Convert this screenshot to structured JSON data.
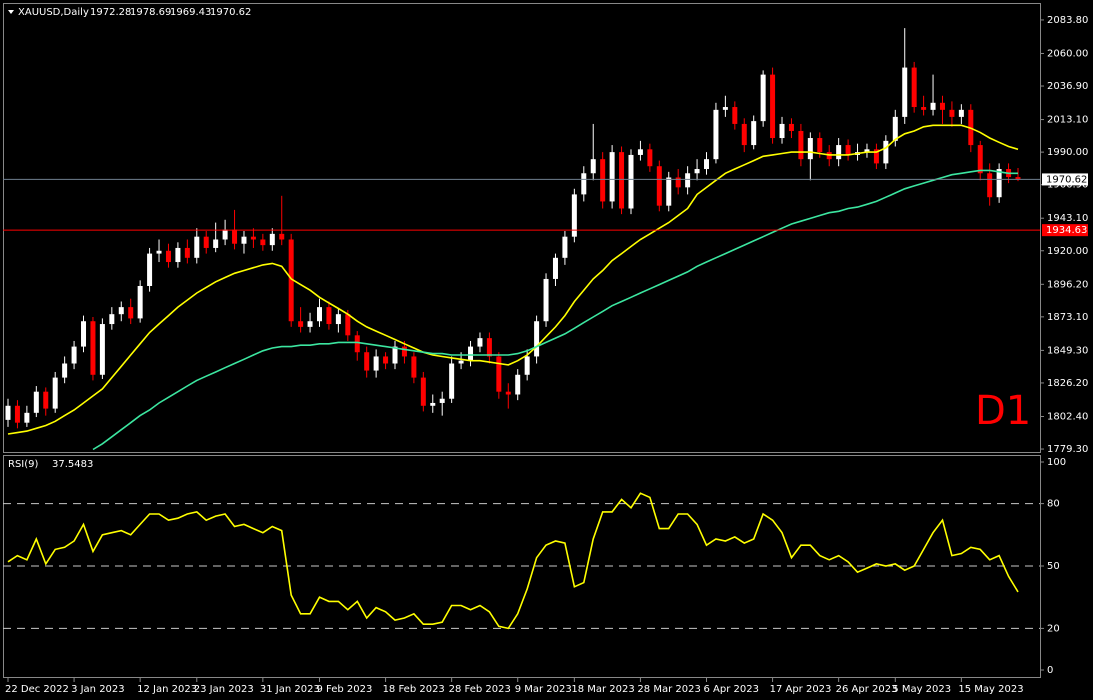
{
  "chart_data": {
    "type": "candlestick",
    "title": "XAUUSD,Daily",
    "timeframe_label": "D1",
    "bull_color": "#ffffff",
    "bear_color": "#ff0000",
    "categories": [
      "22 Dec 2022",
      null,
      null,
      null,
      null,
      null,
      null,
      "3 Jan 2023",
      null,
      null,
      null,
      null,
      null,
      null,
      "12 Jan 2023",
      null,
      null,
      null,
      null,
      null,
      "23 Jan 2023",
      null,
      null,
      null,
      null,
      null,
      null,
      "31 Jan 2023",
      null,
      null,
      null,
      null,
      null,
      "9 Feb 2023",
      null,
      null,
      null,
      null,
      null,
      null,
      "18 Feb 2023",
      null,
      null,
      null,
      null,
      null,
      null,
      "28 Feb 2023",
      null,
      null,
      null,
      null,
      null,
      null,
      "9 Mar 2023",
      null,
      null,
      null,
      null,
      null,
      "18 Mar 2023",
      null,
      null,
      null,
      null,
      null,
      null,
      "28 Mar 2023",
      null,
      null,
      null,
      null,
      null,
      null,
      "6 Apr 2023",
      null,
      null,
      null,
      null,
      null,
      null,
      "17 Apr 2023",
      null,
      null,
      null,
      null,
      null,
      null,
      "26 Apr 2023",
      null,
      null,
      null,
      null,
      null,
      "5 May 2023",
      null,
      null,
      null,
      null,
      null,
      null,
      "15 May 2023",
      null,
      null,
      null,
      null,
      null,
      null
    ],
    "ohlc": [
      [
        1800,
        1815,
        1795,
        1810
      ],
      [
        1810,
        1814,
        1794,
        1798
      ],
      [
        1798,
        1810,
        1795,
        1805
      ],
      [
        1805,
        1824,
        1802,
        1820
      ],
      [
        1820,
        1823,
        1803,
        1808
      ],
      [
        1808,
        1834,
        1805,
        1830
      ],
      [
        1830,
        1845,
        1826,
        1840
      ],
      [
        1840,
        1856,
        1836,
        1852
      ],
      [
        1852,
        1874,
        1848,
        1870
      ],
      [
        1870,
        1873,
        1828,
        1832
      ],
      [
        1832,
        1872,
        1829,
        1868
      ],
      [
        1868,
        1880,
        1864,
        1875
      ],
      [
        1875,
        1884,
        1870,
        1880
      ],
      [
        1880,
        1886,
        1868,
        1872
      ],
      [
        1872,
        1899,
        1869,
        1895
      ],
      [
        1895,
        1922,
        1891,
        1918
      ],
      [
        1918,
        1928,
        1912,
        1920
      ],
      [
        1920,
        1925,
        1908,
        1912
      ],
      [
        1912,
        1926,
        1908,
        1922
      ],
      [
        1922,
        1928,
        1911,
        1915
      ],
      [
        1915,
        1936,
        1911,
        1930
      ],
      [
        1930,
        1934,
        1918,
        1922
      ],
      [
        1922,
        1940,
        1919,
        1928
      ],
      [
        1928,
        1942,
        1924,
        1935
      ],
      [
        1935,
        1949,
        1921,
        1925
      ],
      [
        1925,
        1934,
        1918,
        1930
      ],
      [
        1930,
        1936,
        1922,
        1928
      ],
      [
        1928,
        1932,
        1920,
        1924
      ],
      [
        1924,
        1936,
        1920,
        1932
      ],
      [
        1932,
        1959,
        1924,
        1928
      ],
      [
        1928,
        1932,
        1866,
        1870
      ],
      [
        1870,
        1880,
        1862,
        1866
      ],
      [
        1866,
        1876,
        1862,
        1870
      ],
      [
        1870,
        1886,
        1866,
        1880
      ],
      [
        1880,
        1884,
        1864,
        1868
      ],
      [
        1868,
        1879,
        1862,
        1875
      ],
      [
        1875,
        1878,
        1856,
        1860
      ],
      [
        1860,
        1863,
        1842,
        1848
      ],
      [
        1848,
        1852,
        1830,
        1835
      ],
      [
        1835,
        1850,
        1830,
        1845
      ],
      [
        1845,
        1848,
        1836,
        1840
      ],
      [
        1840,
        1856,
        1836,
        1852
      ],
      [
        1852,
        1856,
        1840,
        1845
      ],
      [
        1845,
        1848,
        1826,
        1830
      ],
      [
        1830,
        1834,
        1806,
        1810
      ],
      [
        1810,
        1818,
        1805,
        1812
      ],
      [
        1812,
        1820,
        1803,
        1815
      ],
      [
        1815,
        1845,
        1812,
        1840
      ],
      [
        1840,
        1848,
        1836,
        1842
      ],
      [
        1842,
        1856,
        1838,
        1852
      ],
      [
        1852,
        1862,
        1848,
        1858
      ],
      [
        1858,
        1862,
        1840,
        1845
      ],
      [
        1845,
        1848,
        1815,
        1820
      ],
      [
        1820,
        1826,
        1808,
        1818
      ],
      [
        1818,
        1836,
        1814,
        1832
      ],
      [
        1832,
        1850,
        1828,
        1845
      ],
      [
        1845,
        1874,
        1840,
        1870
      ],
      [
        1870,
        1904,
        1866,
        1900
      ],
      [
        1900,
        1918,
        1895,
        1915
      ],
      [
        1915,
        1934,
        1910,
        1930
      ],
      [
        1930,
        1964,
        1926,
        1960
      ],
      [
        1960,
        1980,
        1955,
        1975
      ],
      [
        1975,
        2010,
        1970,
        1985
      ],
      [
        1985,
        1990,
        1950,
        1955
      ],
      [
        1955,
        1995,
        1950,
        1990
      ],
      [
        1990,
        1994,
        1946,
        1950
      ],
      [
        1950,
        1992,
        1946,
        1988
      ],
      [
        1988,
        1998,
        1984,
        1992
      ],
      [
        1992,
        1996,
        1976,
        1980
      ],
      [
        1980,
        1984,
        1948,
        1952
      ],
      [
        1952,
        1976,
        1948,
        1972
      ],
      [
        1972,
        1978,
        1960,
        1965
      ],
      [
        1965,
        1980,
        1960,
        1975
      ],
      [
        1975,
        1985,
        1970,
        1978
      ],
      [
        1978,
        1990,
        1974,
        1985
      ],
      [
        1985,
        2025,
        1982,
        2020
      ],
      [
        2020,
        2030,
        2015,
        2022
      ],
      [
        2022,
        2026,
        2006,
        2010
      ],
      [
        2010,
        2014,
        1990,
        1995
      ],
      [
        1995,
        2016,
        1992,
        2012
      ],
      [
        2012,
        2048,
        2008,
        2045
      ],
      [
        2045,
        2050,
        1996,
        2000
      ],
      [
        2000,
        2015,
        1996,
        2010
      ],
      [
        2010,
        2014,
        2000,
        2005
      ],
      [
        2005,
        2010,
        1980,
        1985
      ],
      [
        1985,
        2004,
        1970,
        2000
      ],
      [
        2000,
        2004,
        1986,
        1990
      ],
      [
        1990,
        1995,
        1980,
        1985
      ],
      [
        1985,
        2000,
        1980,
        1995
      ],
      [
        1995,
        1999,
        1984,
        1988
      ],
      [
        1988,
        1996,
        1984,
        1990
      ],
      [
        1990,
        1996,
        1986,
        1992
      ],
      [
        1992,
        1996,
        1978,
        1982
      ],
      [
        1982,
        2002,
        1978,
        1998
      ],
      [
        1998,
        2020,
        1994,
        2015
      ],
      [
        2015,
        2078,
        2010,
        2050
      ],
      [
        2050,
        2054,
        2018,
        2022
      ],
      [
        2022,
        2030,
        2016,
        2020
      ],
      [
        2020,
        2045,
        2016,
        2025
      ],
      [
        2025,
        2030,
        2010,
        2020
      ],
      [
        2020,
        2026,
        2008,
        2015
      ],
      [
        2015,
        2024,
        2010,
        2020
      ],
      [
        2020,
        2024,
        1990,
        1995
      ],
      [
        1995,
        1998,
        1970,
        1975
      ],
      [
        1975,
        1982,
        1952,
        1958
      ],
      [
        1958,
        1982,
        1954,
        1978
      ],
      [
        1978,
        1982,
        1968,
        1972.28
      ],
      [
        1972.28,
        1978.69,
        1969.43,
        1970.62
      ]
    ],
    "overlays": [
      {
        "color": "#ffff00",
        "values": [
          1790,
          1791,
          1792,
          1794,
          1796,
          1799,
          1803,
          1807,
          1812,
          1817,
          1822,
          1830,
          1838,
          1846,
          1854,
          1862,
          1868,
          1874,
          1880,
          1885,
          1890,
          1894,
          1898,
          1901,
          1904,
          1906,
          1908,
          1910,
          1911,
          1909,
          1900,
          1896,
          1892,
          1887,
          1883,
          1879,
          1875,
          1870,
          1866,
          1863,
          1860,
          1857,
          1854,
          1851,
          1848,
          1846,
          1845,
          1844,
          1843,
          1842,
          1842,
          1841,
          1840,
          1839,
          1842,
          1846,
          1852,
          1859,
          1866,
          1874,
          1884,
          1892,
          1900,
          1906,
          1913,
          1918,
          1923,
          1928,
          1932,
          1936,
          1940,
          1945,
          1950,
          1960,
          1965,
          1970,
          1975,
          1978,
          1981,
          1984,
          1987,
          1988,
          1989,
          1990,
          1990,
          1990,
          1989,
          1988,
          1988,
          1988,
          1989,
          1990,
          1990,
          1993,
          1999,
          2003,
          2005,
          2008,
          2009,
          2009,
          2009,
          2009,
          2007,
          2004,
          2000,
          1997,
          1994,
          1992
        ]
      },
      {
        "color": "#3ce6a0",
        "values": [
          null,
          null,
          null,
          null,
          null,
          null,
          null,
          null,
          null,
          1779,
          1783,
          1788,
          1793,
          1798,
          1803,
          1807,
          1812,
          1816,
          1820,
          1824,
          1828,
          1831,
          1834,
          1837,
          1840,
          1843,
          1846,
          1849,
          1851,
          1852,
          1852,
          1853,
          1853,
          1854,
          1854,
          1855,
          1855,
          1855,
          1854,
          1853,
          1852,
          1851,
          1850,
          1849,
          1848,
          1847,
          1847,
          1846,
          1846,
          1846,
          1846,
          1846,
          1846,
          1846,
          1847,
          1849,
          1852,
          1855,
          1858,
          1861,
          1865,
          1869,
          1873,
          1877,
          1881,
          1884,
          1887,
          1890,
          1893,
          1896,
          1899,
          1902,
          1905,
          1909,
          1912,
          1915,
          1918,
          1921,
          1924,
          1927,
          1930,
          1933,
          1936,
          1939,
          1941,
          1943,
          1945,
          1947,
          1948,
          1950,
          1951,
          1953,
          1955,
          1958,
          1961,
          1964,
          1966,
          1968,
          1970,
          1972,
          1974,
          1975,
          1976,
          1977,
          1977,
          1976,
          1975,
          1975
        ]
      }
    ],
    "levels": [
      {
        "value": 1934.63,
        "color": "#ff0000"
      }
    ],
    "ylim": [
      1777.2,
      2094.4
    ],
    "yticks": [
      {
        "value": 2083.8,
        "label": "2083.80"
      },
      {
        "value": 2060,
        "label": "2060.00"
      },
      {
        "value": 2036.9,
        "label": "2036.90"
      },
      {
        "value": 2013.1,
        "label": "2013.10"
      },
      {
        "value": 1990,
        "label": "1990.00"
      },
      {
        "value": 1966.9,
        "label": "1966.90"
      },
      {
        "value": 1943.1,
        "label": "1943.10"
      },
      {
        "value": 1920,
        "label": "1920.00"
      },
      {
        "value": 1896.2,
        "label": "1896.20"
      },
      {
        "value": 1873.1,
        "label": "1873.10"
      },
      {
        "value": 1849.3,
        "label": "1849.30"
      },
      {
        "value": 1826.2,
        "label": "1826.20"
      },
      {
        "value": 1802.4,
        "label": "1802.40"
      },
      {
        "value": 1779.3,
        "label": "1779.30"
      }
    ],
    "indicator": {
      "type": "line",
      "label": "RSI(9)",
      "color": "#ffff00",
      "values": [
        52,
        55,
        53,
        63,
        51,
        58,
        59,
        62,
        70,
        57,
        65,
        66,
        67,
        65,
        70,
        75,
        75,
        72,
        73,
        75,
        76,
        72,
        74,
        75,
        69,
        70,
        68,
        66,
        69,
        67,
        36,
        27,
        27,
        35,
        33,
        33,
        29,
        33,
        25,
        30,
        28,
        24,
        25,
        27,
        22,
        22,
        23,
        31,
        31,
        29,
        31,
        28,
        21,
        20,
        27,
        39,
        54,
        60,
        62,
        61,
        40,
        42,
        63,
        76,
        76,
        82,
        78,
        85,
        83,
        68,
        68,
        75,
        75,
        70,
        60,
        63,
        62,
        64,
        61,
        63,
        75,
        72,
        66,
        54,
        60,
        60,
        55,
        53,
        55,
        52,
        47,
        49,
        51,
        50,
        51,
        48,
        50,
        58,
        66,
        72,
        55,
        56,
        59,
        58,
        53,
        55,
        45,
        37.5483
      ],
      "ylim": [
        0,
        100
      ],
      "yticks": [
        100,
        80,
        50,
        20,
        0
      ]
    }
  }
}
